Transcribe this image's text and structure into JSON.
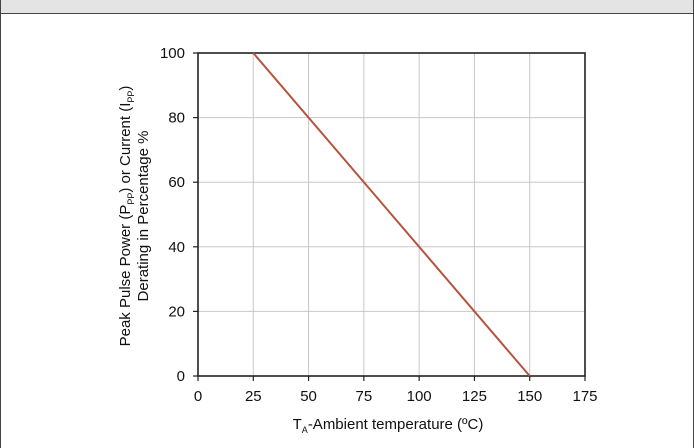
{
  "chart_data": {
    "type": "line",
    "title": "",
    "xlabel_main": "T",
    "xlabel_sub": "A",
    "xlabel_rest": "-Ambient temperature (ºC)",
    "ylabel_line1_a": "Peak Pulse Power (P",
    "ylabel_line1_sub1": "PP",
    "ylabel_line1_b": ") or Current (I",
    "ylabel_line1_sub2": "PP",
    "ylabel_line1_c": ")",
    "ylabel_line2": "Derating in Percentage %",
    "xlim": [
      0,
      175
    ],
    "ylim": [
      0,
      100
    ],
    "x_ticks": [
      "0",
      "25",
      "50",
      "75",
      "100",
      "125",
      "150",
      "175"
    ],
    "y_ticks": [
      "0",
      "20",
      "40",
      "60",
      "80",
      "100"
    ],
    "grid": true,
    "series": [
      {
        "x": [
          25,
          150
        ],
        "y": [
          100,
          0
        ],
        "color": "#b5533c"
      }
    ]
  }
}
